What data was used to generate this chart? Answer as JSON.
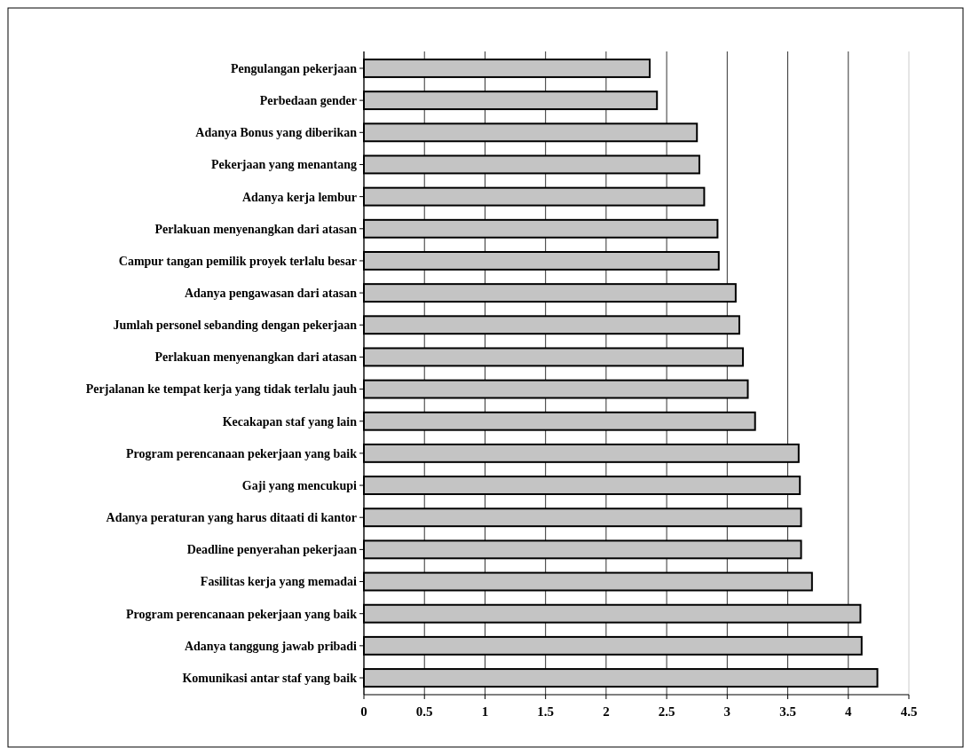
{
  "chart_data": {
    "type": "bar",
    "orientation": "horizontal",
    "categories": [
      "Pengulangan pekerjaan",
      "Perbedaan gender",
      "Adanya Bonus yang diberikan",
      "Pekerjaan yang menantang",
      "Adanya kerja lembur",
      "Perlakuan menyenangkan dari atasan",
      "Campur tangan pemilik proyek terlalu besar",
      "Adanya pengawasan dari atasan",
      "Jumlah personel sebanding dengan pekerjaan",
      "Perlakuan menyenangkan dari atasan",
      "Perjalanan ke tempat kerja yang tidak terlalu jauh",
      "Kecakapan staf yang lain",
      "Program perencanaan pekerjaan yang baik",
      "Gaji yang mencukupi",
      "Adanya peraturan yang harus ditaati di kantor",
      "Deadline penyerahan pekerjaan",
      "Fasilitas kerja yang memadai",
      "Program perencanaan pekerjaan yang baik",
      "Adanya tanggung jawab pribadi",
      "Komunikasi antar staf yang baik"
    ],
    "values": [
      2.36,
      2.42,
      2.75,
      2.77,
      2.81,
      2.92,
      2.93,
      3.07,
      3.1,
      3.13,
      3.17,
      3.23,
      3.59,
      3.6,
      3.61,
      3.61,
      3.7,
      4.1,
      4.11,
      4.24
    ],
    "color": "#c4c4c4",
    "xlim": [
      0,
      4.5
    ],
    "xticks": [
      0,
      0.5,
      1,
      1.5,
      2,
      2.5,
      3,
      3.5,
      4,
      4.5
    ],
    "grid": "x"
  }
}
